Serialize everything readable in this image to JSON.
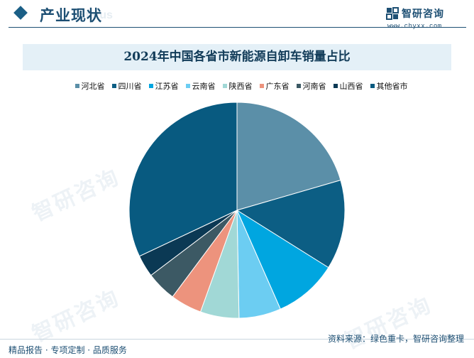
{
  "header": {
    "title": "产业现状",
    "watermark_text": "Status",
    "brand_name": "智研咨询",
    "brand_url": "www.chyxx.com"
  },
  "watermark": {
    "text": "智研咨询"
  },
  "chart_data": {
    "type": "pie",
    "title": "2024年中国各省市新能源自卸车销量占比",
    "legend_position": "top",
    "series": [
      {
        "name": "河北省",
        "value": 20.5,
        "color": "#5b8fa8"
      },
      {
        "name": "四川省",
        "value": 13.4,
        "color": "#0c5e84"
      },
      {
        "name": "江苏省",
        "value": 9.5,
        "color": "#00a6e0"
      },
      {
        "name": "云南省",
        "value": 6.3,
        "color": "#6ccdf2"
      },
      {
        "name": "陕西省",
        "value": 5.8,
        "color": "#a1d8d6"
      },
      {
        "name": "广东省",
        "value": 4.7,
        "color": "#ed937d"
      },
      {
        "name": "河南省",
        "value": 4.5,
        "color": "#3c5964"
      },
      {
        "name": "山西省",
        "value": 3.3,
        "color": "#0b3954"
      },
      {
        "name": "其他省市",
        "value": 32.0,
        "color": "#085a80"
      }
    ]
  },
  "footer": {
    "left_text": "精品报告 · 专项定制 · 品质服务",
    "source": "资料来源：绿色重卡，智研咨询整理"
  }
}
